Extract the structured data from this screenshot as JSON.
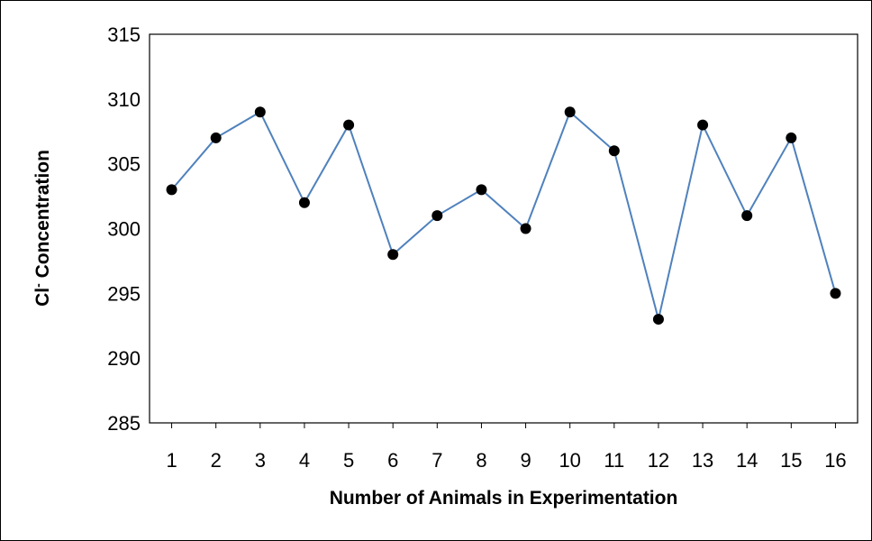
{
  "chart_data": {
    "type": "line",
    "xlabel": "Number of Animals in Experimentation",
    "ylabel_main": "Cl",
    "ylabel_sup": "-",
    "ylabel_rest": " Concentration",
    "x": [
      1,
      2,
      3,
      4,
      5,
      6,
      7,
      8,
      9,
      10,
      11,
      12,
      13,
      14,
      15,
      16
    ],
    "categories": [
      "1",
      "2",
      "3",
      "4",
      "5",
      "6",
      "7",
      "8",
      "9",
      "10",
      "11",
      "12",
      "13",
      "14",
      "15",
      "16"
    ],
    "series": [
      {
        "values": [
          303,
          307,
          309,
          302,
          308,
          298,
          301,
          303,
          300,
          309,
          306,
          293,
          308,
          301,
          307,
          295
        ]
      }
    ],
    "ylim": [
      285,
      315
    ],
    "yticks": [
      285,
      290,
      295,
      300,
      305,
      310,
      315
    ],
    "grid": false,
    "legend": "none",
    "colors": {
      "line": "#4F81BD",
      "marker": "#000000"
    }
  }
}
